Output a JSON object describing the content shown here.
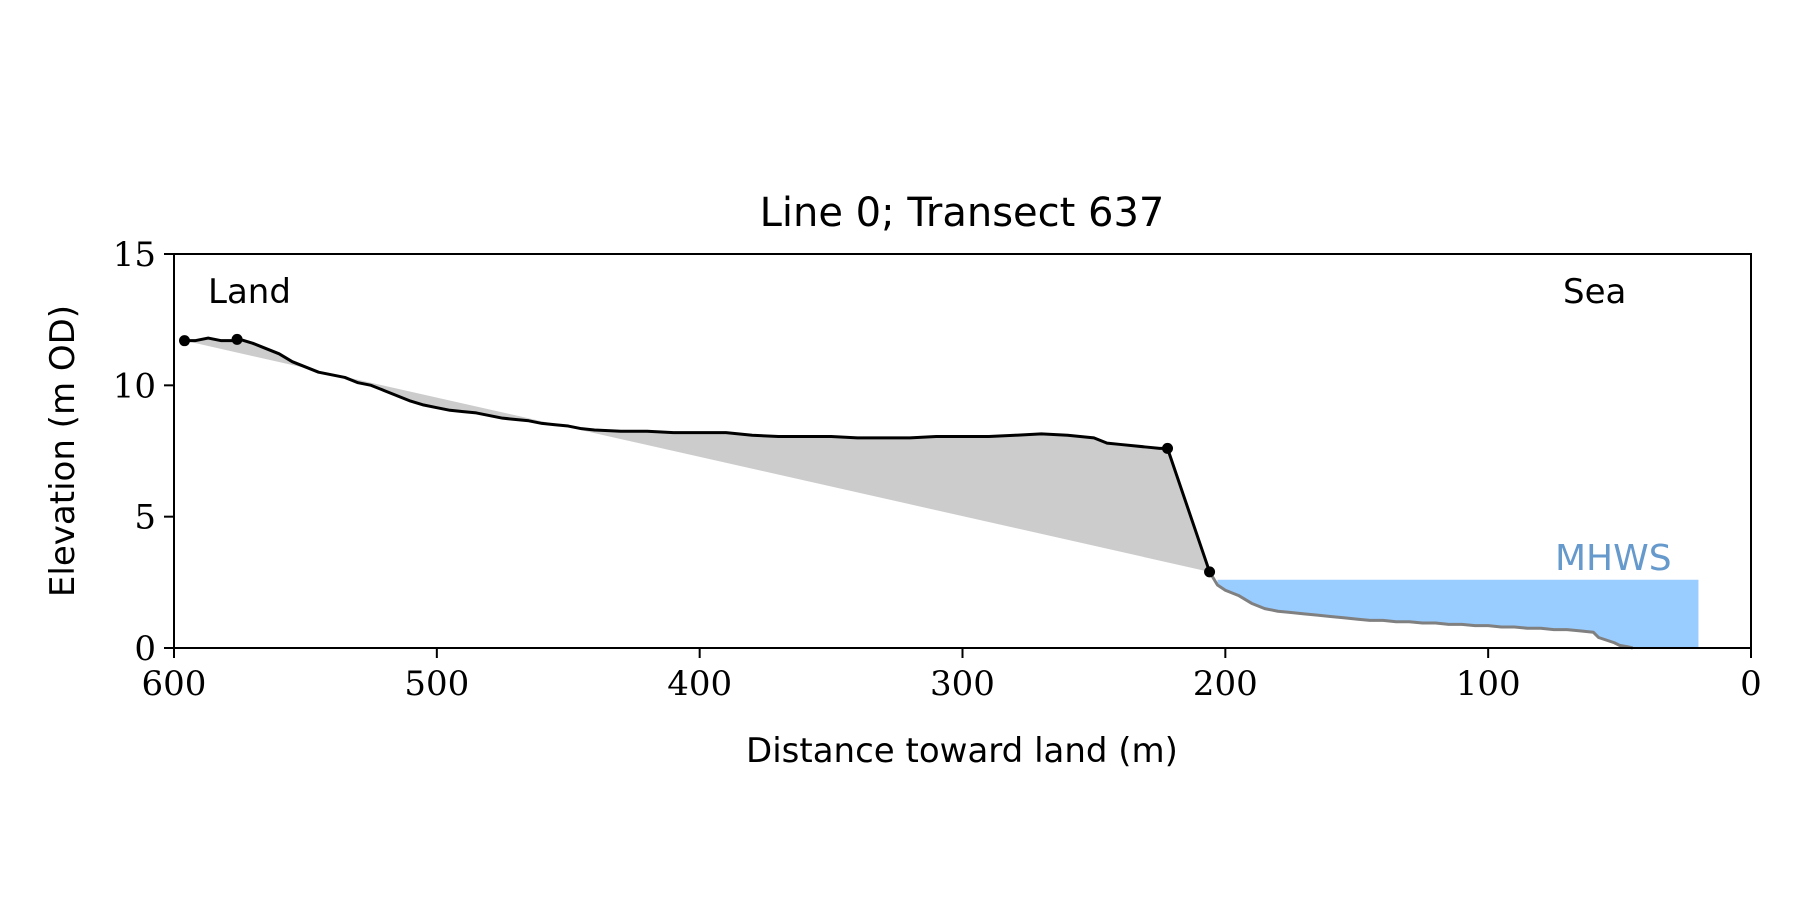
{
  "chart_data": {
    "type": "line",
    "title": "Line 0; Transect 637",
    "xlabel": "Distance toward land (m)",
    "ylabel": "Elevation (m OD)",
    "xlim": [
      600,
      0
    ],
    "ylim": [
      0,
      15
    ],
    "x_ticks": [
      600,
      500,
      400,
      300,
      200,
      100,
      0
    ],
    "y_ticks": [
      0,
      5,
      10,
      15
    ],
    "grid": false,
    "annotations": {
      "land_label": "Land",
      "sea_label": "Sea",
      "mhws_label": "MHWS"
    },
    "mhws_level": 2.6,
    "mhws_x_range": [
      203,
      20
    ],
    "colors": {
      "profile": "#000000",
      "sea_profile": "#808080",
      "fill_area": "#cccccc",
      "mhws_fill": "#99ccff",
      "mhws_text": "#6699cc"
    },
    "series": [
      {
        "role": "land-profile",
        "x": [
          596,
          592,
          587,
          582,
          577,
          575,
          570,
          565,
          560,
          555,
          550,
          545,
          540,
          535,
          530,
          525,
          520,
          515,
          510,
          505,
          500,
          495,
          490,
          485,
          480,
          475,
          470,
          465,
          460,
          455,
          450,
          445,
          440,
          430,
          420,
          410,
          400,
          390,
          380,
          370,
          360,
          350,
          340,
          330,
          320,
          310,
          300,
          290,
          280,
          270,
          260,
          250,
          245,
          240,
          235,
          230,
          225,
          222,
          206
        ],
        "y": [
          11.7,
          11.7,
          11.8,
          11.7,
          11.7,
          11.75,
          11.6,
          11.4,
          11.2,
          10.9,
          10.7,
          10.5,
          10.4,
          10.3,
          10.1,
          10.0,
          9.8,
          9.6,
          9.4,
          9.25,
          9.15,
          9.05,
          9.0,
          8.95,
          8.85,
          8.75,
          8.7,
          8.65,
          8.55,
          8.5,
          8.45,
          8.35,
          8.3,
          8.25,
          8.25,
          8.2,
          8.2,
          8.2,
          8.1,
          8.05,
          8.05,
          8.05,
          8.0,
          8.0,
          8.0,
          8.05,
          8.05,
          8.05,
          8.1,
          8.15,
          8.1,
          8.0,
          7.8,
          7.75,
          7.7,
          7.65,
          7.6,
          7.6,
          2.9
        ]
      },
      {
        "role": "sea-profile",
        "x": [
          206,
          203,
          200,
          195,
          190,
          185,
          180,
          175,
          170,
          165,
          160,
          155,
          150,
          145,
          140,
          135,
          130,
          125,
          120,
          115,
          110,
          105,
          100,
          95,
          90,
          85,
          80,
          75,
          70,
          65,
          60,
          58,
          55,
          52,
          50,
          47,
          45
        ],
        "y": [
          2.9,
          2.4,
          2.2,
          2.0,
          1.7,
          1.5,
          1.4,
          1.35,
          1.3,
          1.25,
          1.2,
          1.15,
          1.1,
          1.05,
          1.05,
          1.0,
          1.0,
          0.95,
          0.95,
          0.9,
          0.9,
          0.85,
          0.85,
          0.8,
          0.8,
          0.75,
          0.75,
          0.7,
          0.7,
          0.65,
          0.6,
          0.4,
          0.3,
          0.2,
          0.1,
          0.05,
          0.0
        ]
      }
    ],
    "markers": {
      "x": [
        596,
        576,
        222,
        206
      ],
      "y": [
        11.7,
        11.75,
        7.6,
        2.9
      ]
    },
    "baseline": {
      "x": [
        596,
        206
      ],
      "y": [
        11.7,
        2.9
      ]
    }
  }
}
